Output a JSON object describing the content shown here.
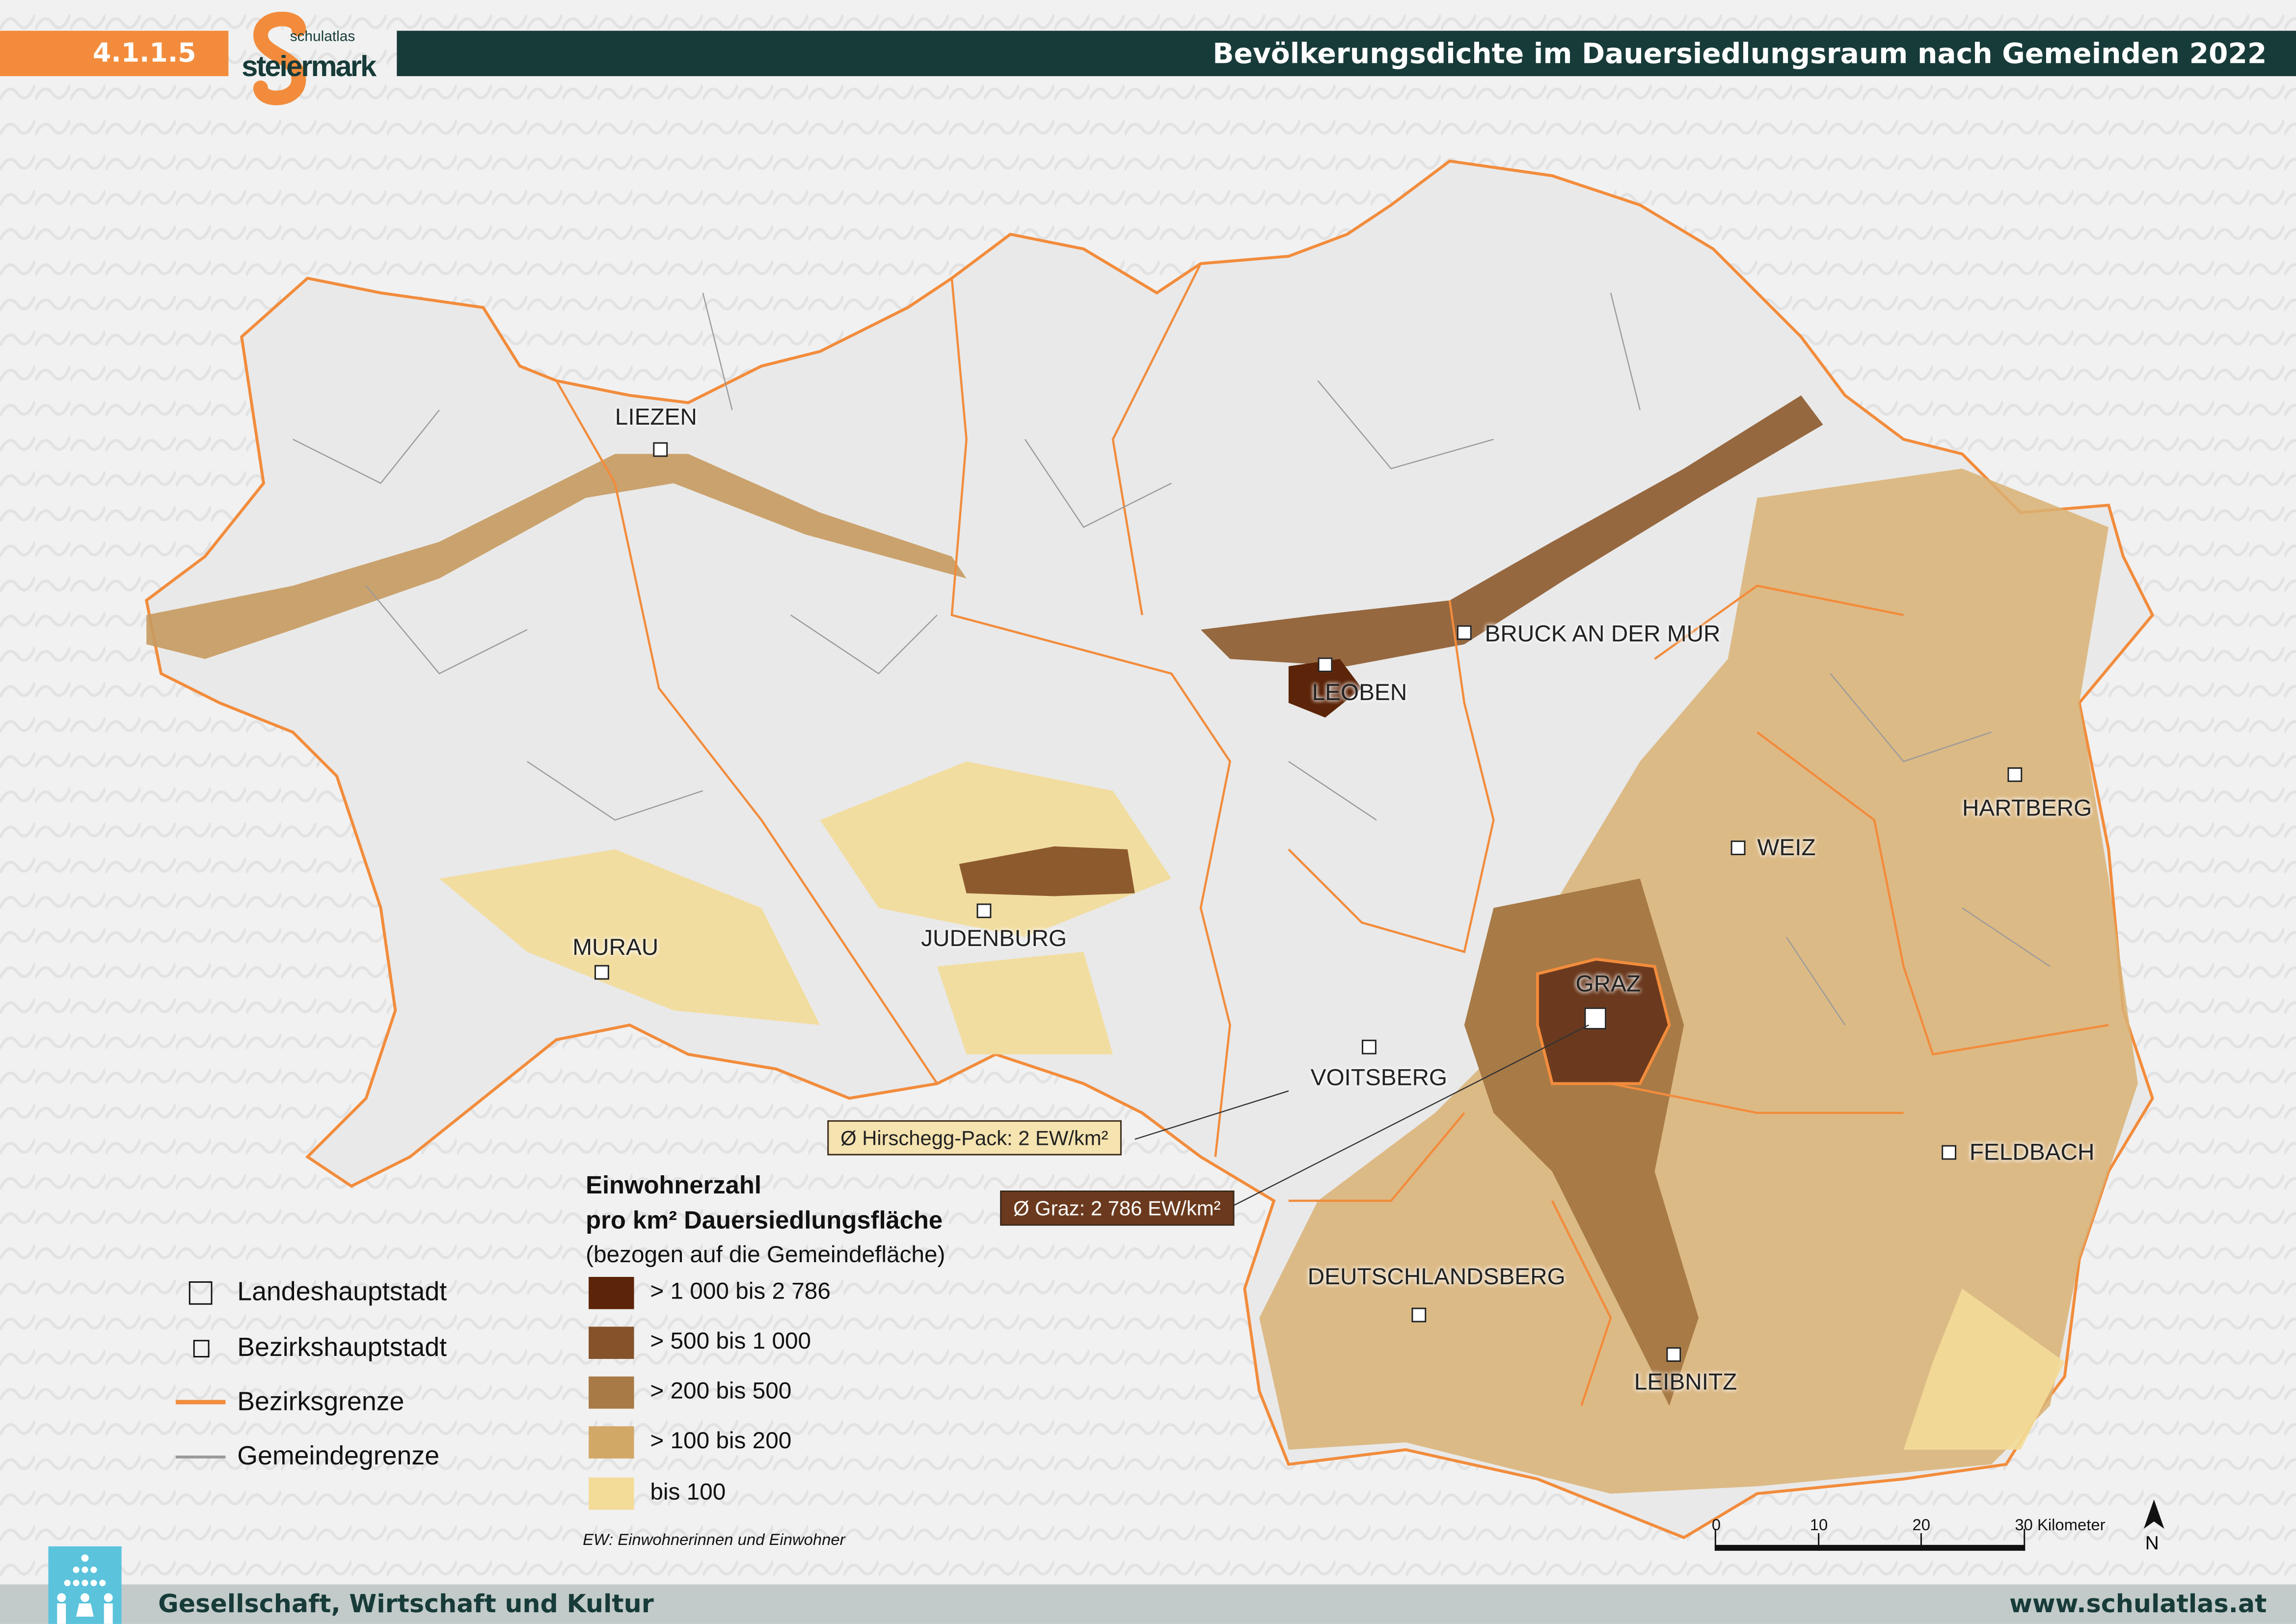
{
  "header": {
    "map_number": "4.1.1.5",
    "logo_text_small": "schulatlas",
    "logo_text_large": "steiermark",
    "title": "Bevölkerungsdichte im Dauersiedlungsraum nach Gemeinden 2022",
    "number_color": "#f28c3c",
    "bar_color": "#173b39"
  },
  "map": {
    "cities": [
      {
        "name": "LIEZEN",
        "type": "Bezirkshauptstadt"
      },
      {
        "name": "LEOBEN",
        "type": "Bezirkshauptstadt"
      },
      {
        "name": "BRUCK AN DER MUR",
        "type": "Bezirkshauptstadt"
      },
      {
        "name": "HARTBERG",
        "type": "Bezirkshauptstadt"
      },
      {
        "name": "WEIZ",
        "type": "Bezirkshauptstadt"
      },
      {
        "name": "GRAZ",
        "type": "Landeshauptstadt"
      },
      {
        "name": "VOITSBERG",
        "type": "Bezirkshauptstadt"
      },
      {
        "name": "FELDBACH",
        "type": "Bezirkshauptstadt"
      },
      {
        "name": "DEUTSCHLANDSBERG",
        "type": "Bezirkshauptstadt"
      },
      {
        "name": "LEIBNITZ",
        "type": "Bezirkshauptstadt"
      },
      {
        "name": "MURAU",
        "type": "Bezirkshauptstadt"
      },
      {
        "name": "JUDENBURG",
        "type": "Bezirkshauptstadt"
      }
    ],
    "callouts": {
      "min": "Ø Hirschegg-Pack: 2 EW/km²",
      "max": "Ø Graz: 2 786 EW/km²"
    },
    "district_border_color": "#f28c3c",
    "municipality_border_color": "#9a9a9a"
  },
  "legend": {
    "title_line1": "Einwohnerzahl",
    "title_line2": "pro km² Dauersiedlungsfläche",
    "subtitle": "(bezogen auf die Gemeindefläche)",
    "classes": [
      {
        "label": "> 1 000 bis 2 786",
        "color": "#5c2408"
      },
      {
        "label": "> 500 bis 1 000",
        "color": "#85522a"
      },
      {
        "label": "> 200 bis 500",
        "color": "#a87a46"
      },
      {
        "label": "> 100 bis 200",
        "color": "#d2a867"
      },
      {
        "label": "bis 100",
        "color": "#f3dc98"
      }
    ],
    "symbols": [
      {
        "label": "Landeshauptstadt",
        "icon": "large-square-icon"
      },
      {
        "label": "Bezirkshauptstadt",
        "icon": "small-square-icon"
      },
      {
        "label": "Bezirksgrenze",
        "icon": "orange-line-icon"
      },
      {
        "label": "Gemeindegrenze",
        "icon": "gray-line-icon"
      }
    ],
    "note": "EW: Einwohnerinnen und Einwohner"
  },
  "scalebar": {
    "ticks": [
      "0",
      "10",
      "20",
      "30 Kilometer"
    ],
    "north": "N"
  },
  "footer": {
    "category": "Gesellschaft, Wirtschaft und Kultur",
    "url": "www.schulatlas.at",
    "icon": "people-group-icon"
  }
}
